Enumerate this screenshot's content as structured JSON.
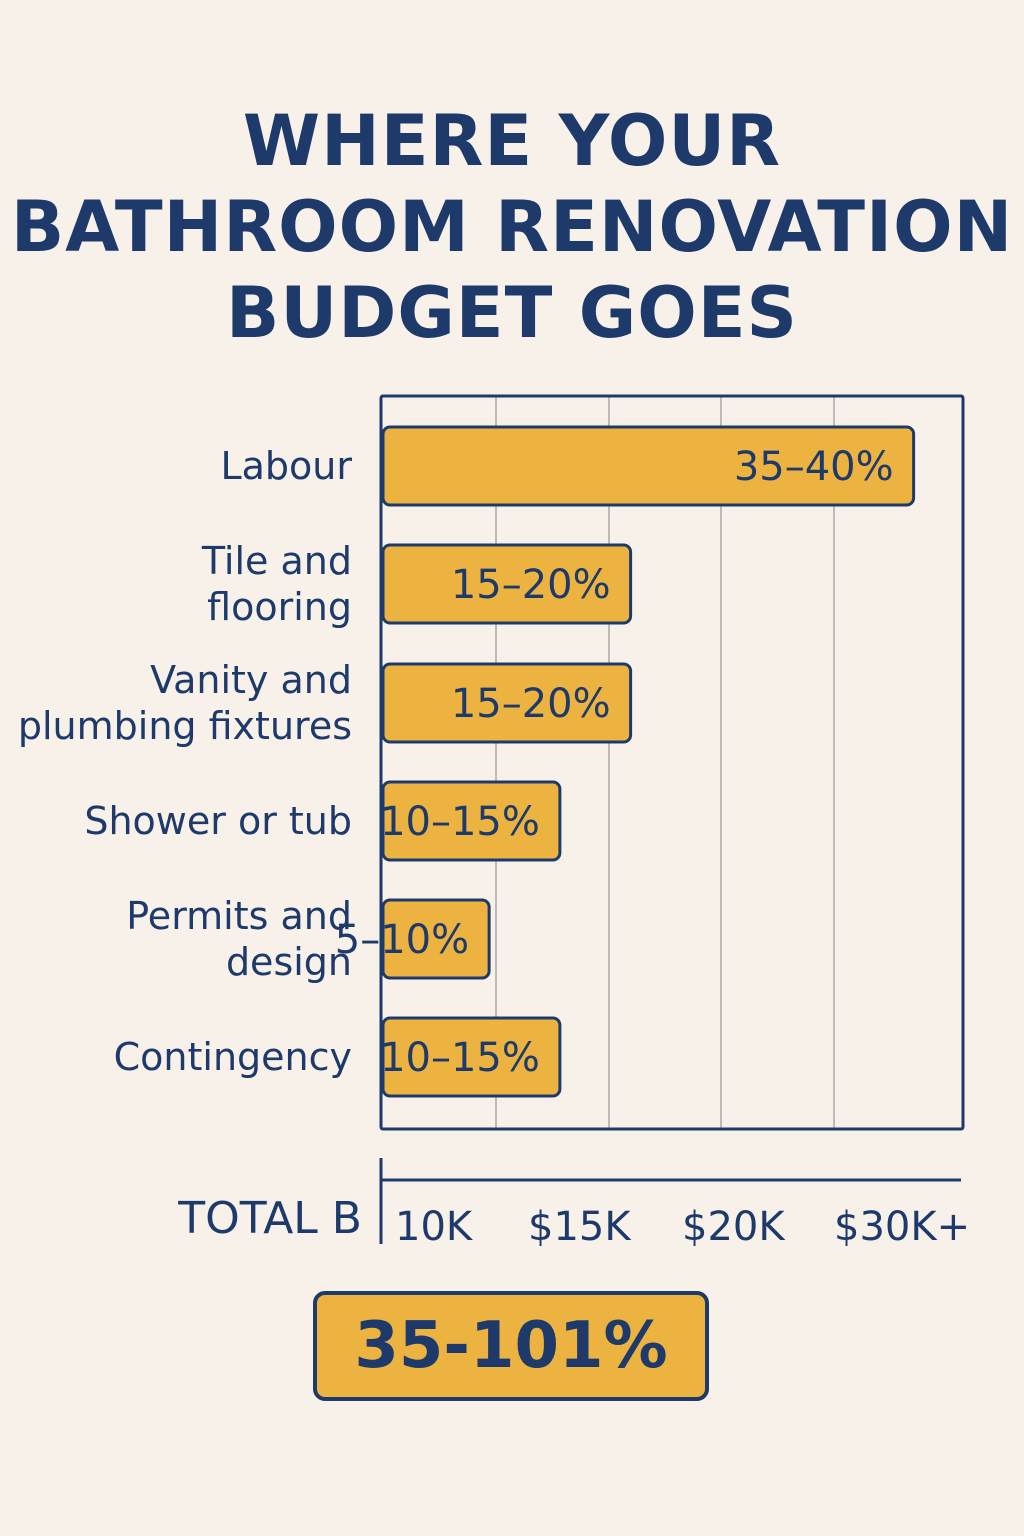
{
  "title_lines": [
    "WHERE YOUR",
    "BATHROOM RENOVATION",
    "BUDGET GOES"
  ],
  "colors": {
    "background": "#f7f1ea",
    "bar": "#ecb340",
    "ink": "#1d3a6b",
    "grid": "#a9a9a9"
  },
  "chart_data": {
    "type": "bar",
    "orientation": "horizontal",
    "title": "WHERE YOUR BATHROOM RENOVATION BUDGET GOES",
    "categories": [
      [
        "Labour"
      ],
      [
        "Tile and",
        "flooring"
      ],
      [
        "Vanity and",
        "plumbing fixtures"
      ],
      [
        "Shower or tub"
      ],
      [
        "Permits and",
        "design"
      ],
      [
        "Contingency"
      ]
    ],
    "values": [
      37.5,
      17.5,
      17.5,
      12.5,
      7.5,
      12.5
    ],
    "ranges": [
      [
        35,
        40
      ],
      [
        15,
        20
      ],
      [
        15,
        20
      ],
      [
        10,
        15
      ],
      [
        5,
        10
      ],
      [
        10,
        15
      ]
    ],
    "data_labels": [
      "35–40%",
      "15–20%",
      "15–20%",
      "10–15%",
      "5–10%",
      "10–15%"
    ],
    "value_unit": "%",
    "grid": true,
    "x_axis_title": "TOTAL B",
    "x_tick_labels": [
      "10K",
      "$15K",
      "$20K",
      "$30K+"
    ]
  },
  "total_box": {
    "label": "35-101%"
  }
}
